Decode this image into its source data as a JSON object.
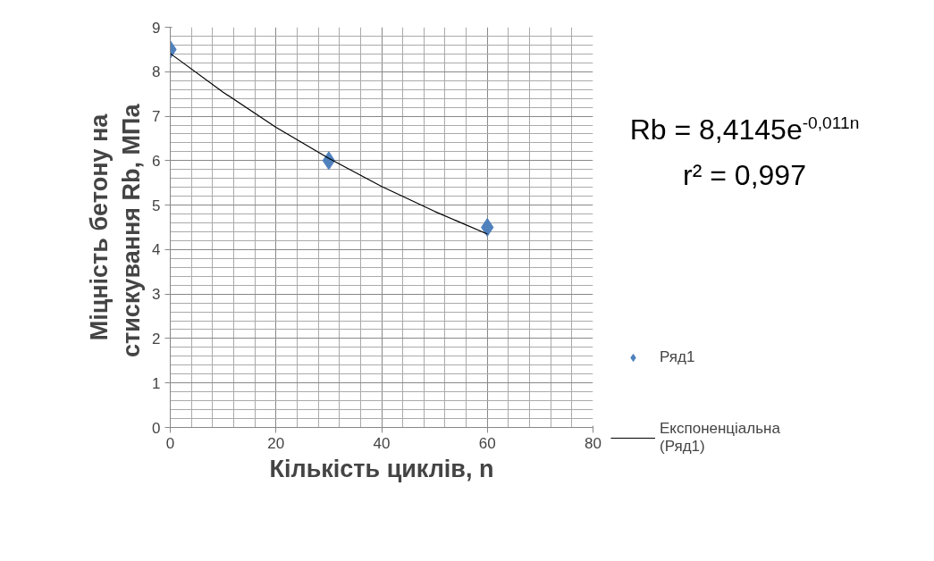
{
  "chart_data": {
    "type": "scatter",
    "xlabel": "Кількість циклів, n",
    "ylabel": "Міцність бетону на\nстискування  Rb, МПа",
    "x": [
      0,
      30,
      60
    ],
    "series": [
      {
        "name": "Ряд1",
        "color": "#4f81bd",
        "marker": "diamond",
        "values": [
          8.5,
          6.0,
          4.5
        ]
      },
      {
        "name": "Експоненціальна (Ряд1)",
        "type": "line",
        "color": "#000000",
        "marker": "none",
        "x": [
          0,
          10,
          20,
          30,
          40,
          50,
          60
        ],
        "values": [
          8.41,
          7.54,
          6.75,
          6.05,
          5.42,
          4.86,
          4.35
        ]
      }
    ],
    "annotations": [
      "Rb = 8,4145e$^{-0,011n}$",
      "r² = 0,997"
    ],
    "xlim": [
      0,
      80
    ],
    "ylim": [
      0,
      9
    ],
    "xticks": [
      0,
      20,
      40,
      60,
      80
    ],
    "yticks": [
      0,
      1,
      2,
      3,
      4,
      5,
      6,
      7,
      8,
      9
    ],
    "grid": true,
    "legend": "right"
  }
}
